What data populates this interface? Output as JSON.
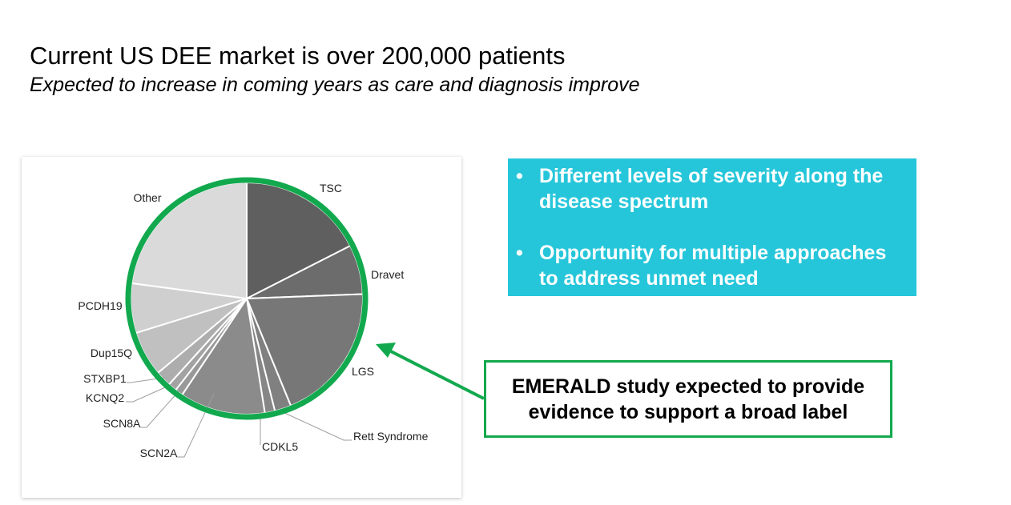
{
  "header": {
    "title": "Current US DEE market is over 200,000 patients",
    "subtitle": "Expected to increase in coming years as care and diagnosis improve"
  },
  "info_box": {
    "background": "#26c6da",
    "bullets": [
      "Different levels of severity along the disease spectrum",
      "Opportunity for multiple approaches to address unmet need"
    ]
  },
  "callout": {
    "text": "EMERALD study expected to provide evidence to support a broad label",
    "border_color": "#12a94e"
  },
  "chart_data": {
    "type": "pie",
    "start_angle_deg": 0,
    "direction": "clockwise",
    "highlight_ring_color": "#12a94e",
    "legend": "none; labels placed next to slices",
    "slices": [
      {
        "label": "TSC",
        "value": 17.5,
        "color": "#5f5f5f"
      },
      {
        "label": "Dravet",
        "value": 6.9,
        "color": "#6c6c6c"
      },
      {
        "label": "LGS",
        "value": 19.4,
        "color": "#777777"
      },
      {
        "label": "Rett Syndrome",
        "value": 2.3,
        "color": "#808080"
      },
      {
        "label": "CDKL5",
        "value": 1.4,
        "color": "#868686"
      },
      {
        "label": "SCN2A",
        "value": 11.9,
        "color": "#8b8b8b"
      },
      {
        "label": "SCN8A",
        "value": 1.1,
        "color": "#999999"
      },
      {
        "label": "KCNQ2",
        "value": 1.2,
        "color": "#a3a3a3"
      },
      {
        "label": "STXBP1",
        "value": 2.2,
        "color": "#adadad"
      },
      {
        "label": "Dup15Q",
        "value": 6.3,
        "color": "#c0c0c0"
      },
      {
        "label": "PCDH19",
        "value": 6.9,
        "color": "#cfcfcf"
      },
      {
        "label": "Other",
        "value": 22.9,
        "color": "#dadada"
      }
    ]
  }
}
